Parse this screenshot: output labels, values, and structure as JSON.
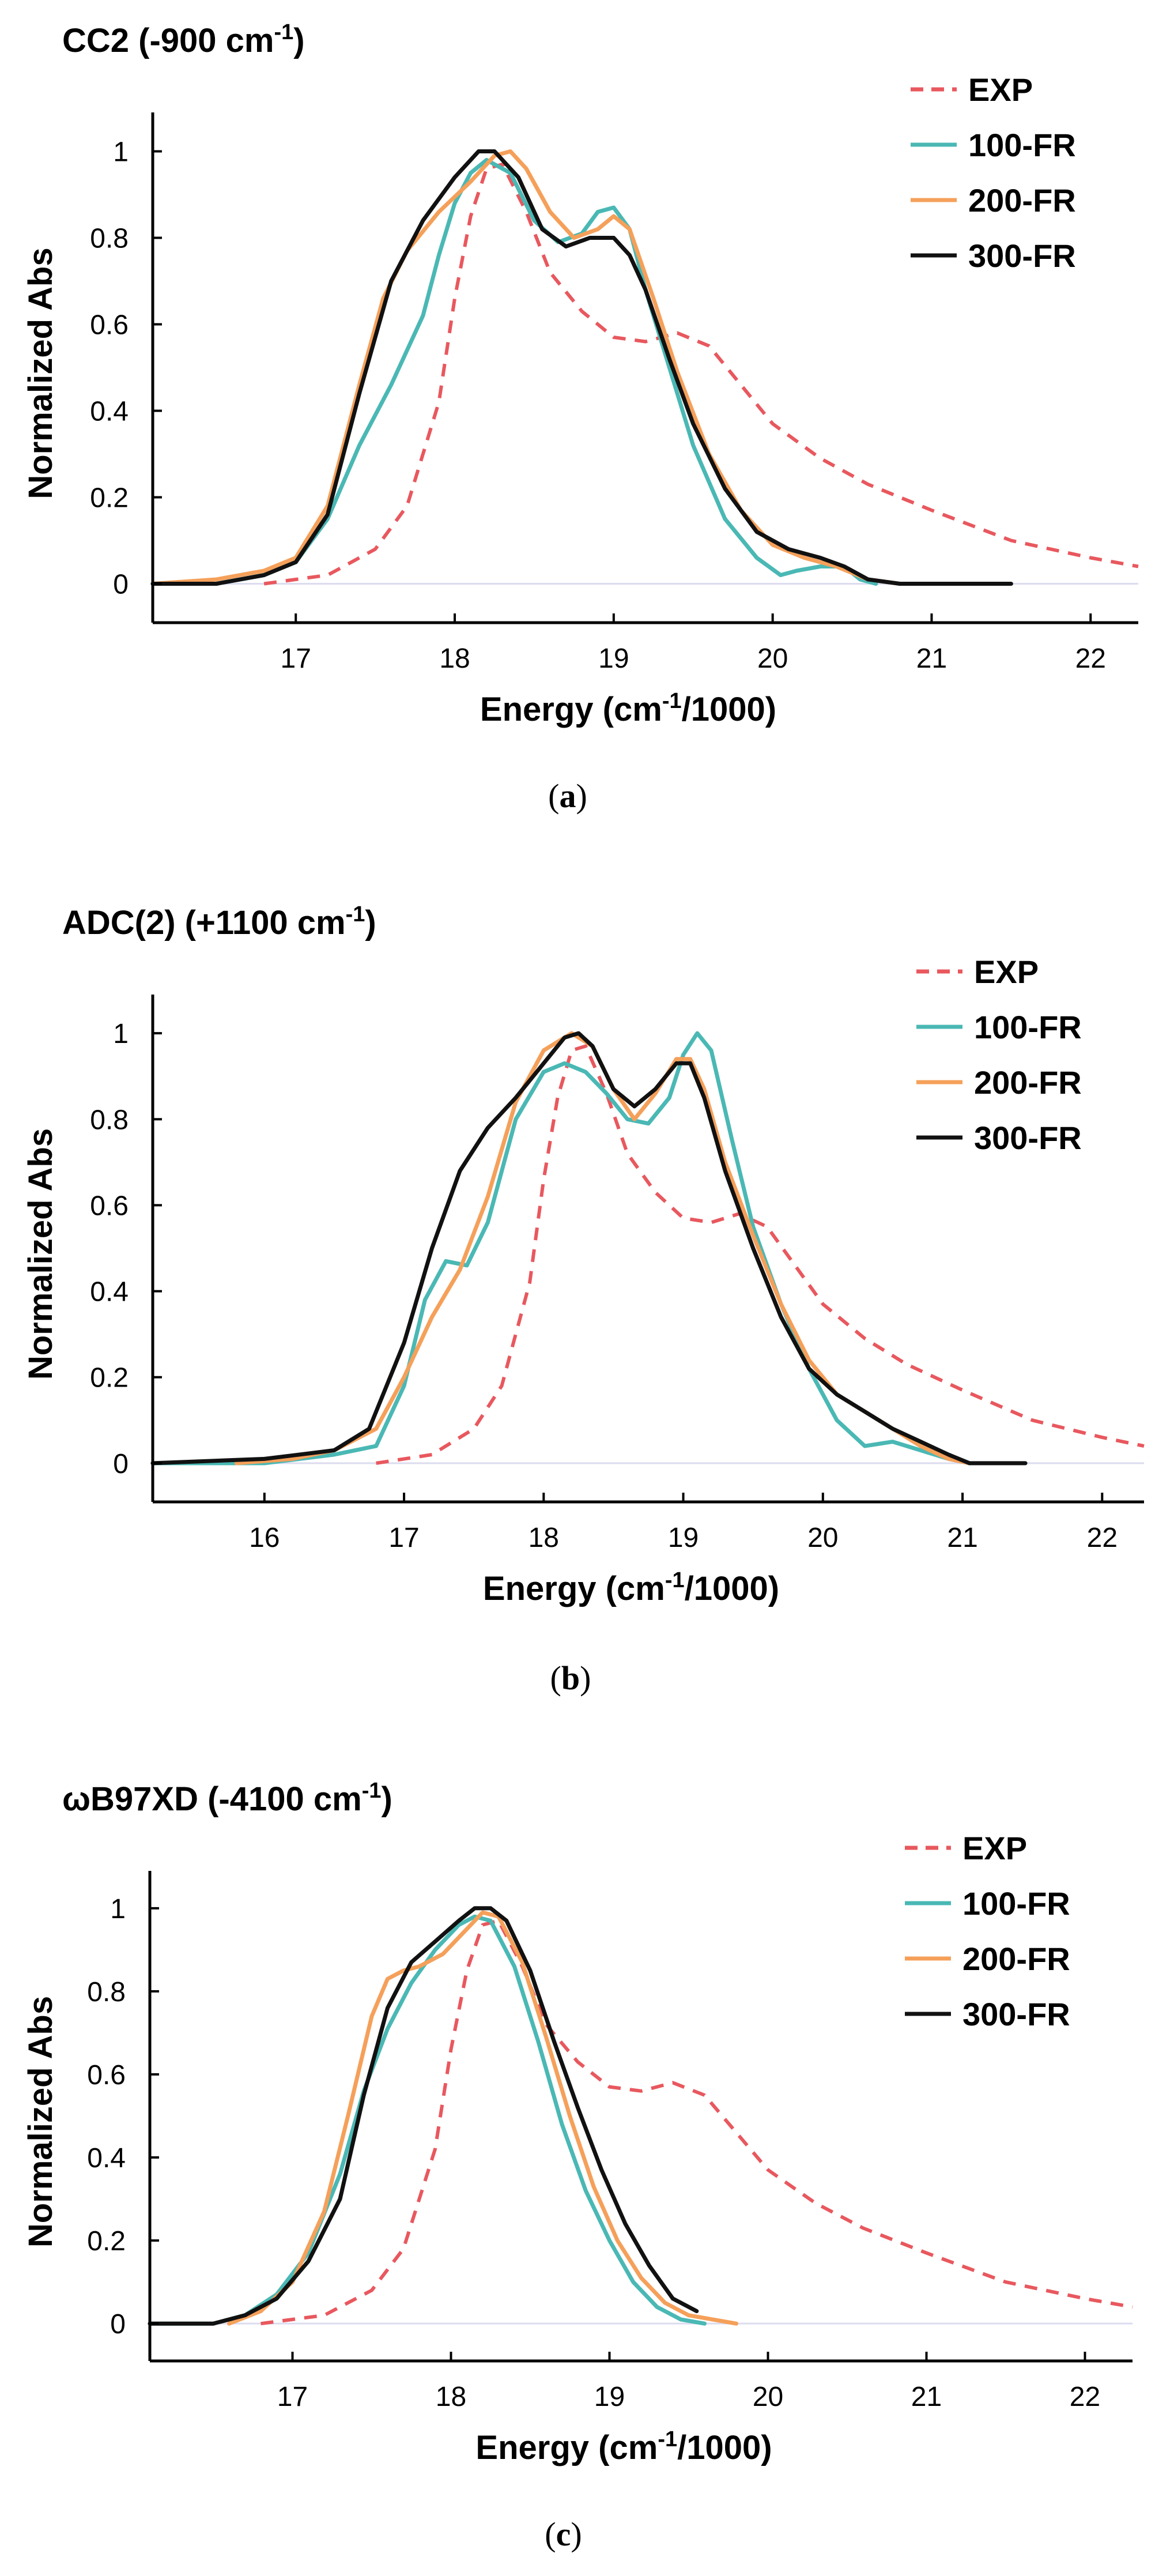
{
  "chart_data": [
    {
      "type": "line",
      "title": "CC2 (-900 cm",
      "title_sup": "-1",
      "title_tail": ")",
      "xlabel": "Energy (cm",
      "xlabel_sup": "-1",
      "xlabel_tail": "/1000)",
      "ylabel": "Normalized Abs",
      "xlim": [
        16.1,
        22.3
      ],
      "ylim": [
        -0.09,
        1.09
      ],
      "xticks": [
        "17",
        "18",
        "19",
        "20",
        "21",
        "22"
      ],
      "yticks": [
        "0",
        "0.2",
        "0.4",
        "0.6",
        "0.8",
        "1"
      ],
      "caption_open": "(",
      "caption": "a",
      "caption_close": ")",
      "legend_position": "top-right",
      "series": [
        {
          "name": "EXP",
          "color": "#e8585e",
          "dashed": true,
          "x": [
            16.8,
            17.2,
            17.5,
            17.7,
            17.9,
            18.0,
            18.1,
            18.2,
            18.3,
            18.45,
            18.6,
            18.8,
            19.0,
            19.2,
            19.4,
            19.6,
            19.8,
            20.0,
            20.3,
            20.6,
            21.0,
            21.5,
            22.0,
            22.3
          ],
          "y": [
            0.0,
            0.02,
            0.08,
            0.18,
            0.42,
            0.66,
            0.85,
            0.96,
            0.97,
            0.86,
            0.72,
            0.63,
            0.57,
            0.56,
            0.58,
            0.55,
            0.46,
            0.37,
            0.29,
            0.23,
            0.17,
            0.1,
            0.06,
            0.04
          ]
        },
        {
          "name": "100-FR",
          "color": "#4ab8b4",
          "dashed": false,
          "x": [
            16.1,
            16.5,
            16.8,
            17.0,
            17.2,
            17.4,
            17.6,
            17.8,
            17.9,
            18.0,
            18.1,
            18.2,
            18.35,
            18.5,
            18.65,
            18.8,
            18.9,
            19.0,
            19.1,
            19.2,
            19.35,
            19.5,
            19.7,
            19.9,
            20.05,
            20.15,
            20.3,
            20.45,
            20.55,
            20.65
          ],
          "y": [
            0.0,
            0.0,
            0.02,
            0.05,
            0.15,
            0.32,
            0.46,
            0.62,
            0.76,
            0.88,
            0.95,
            0.98,
            0.95,
            0.84,
            0.79,
            0.81,
            0.86,
            0.87,
            0.82,
            0.68,
            0.5,
            0.32,
            0.15,
            0.06,
            0.02,
            0.03,
            0.04,
            0.04,
            0.01,
            0.0
          ]
        },
        {
          "name": "200-FR",
          "color": "#f5a05a",
          "dashed": false,
          "x": [
            16.1,
            16.5,
            16.8,
            17.0,
            17.2,
            17.4,
            17.55,
            17.7,
            17.9,
            18.1,
            18.25,
            18.35,
            18.45,
            18.6,
            18.75,
            18.9,
            19.0,
            19.1,
            19.25,
            19.4,
            19.6,
            19.8,
            20.0,
            20.2,
            20.4,
            20.6,
            20.8,
            21.0
          ],
          "y": [
            0.0,
            0.01,
            0.03,
            0.06,
            0.18,
            0.46,
            0.66,
            0.77,
            0.86,
            0.93,
            0.99,
            1.0,
            0.96,
            0.86,
            0.8,
            0.82,
            0.85,
            0.82,
            0.66,
            0.49,
            0.3,
            0.17,
            0.09,
            0.06,
            0.04,
            0.01,
            0.0,
            0.0
          ]
        },
        {
          "name": "300-FR",
          "color": "#111111",
          "dashed": false,
          "x": [
            16.1,
            16.5,
            16.8,
            17.0,
            17.2,
            17.4,
            17.6,
            17.8,
            18.0,
            18.15,
            18.25,
            18.4,
            18.55,
            18.7,
            18.85,
            19.0,
            19.1,
            19.2,
            19.35,
            19.5,
            19.7,
            19.9,
            20.1,
            20.3,
            20.45,
            20.6,
            20.8,
            21.0,
            21.5
          ],
          "y": [
            0.0,
            0.0,
            0.02,
            0.05,
            0.16,
            0.44,
            0.7,
            0.84,
            0.94,
            1.0,
            1.0,
            0.94,
            0.82,
            0.78,
            0.8,
            0.8,
            0.76,
            0.68,
            0.52,
            0.37,
            0.22,
            0.12,
            0.08,
            0.06,
            0.04,
            0.01,
            0.0,
            0.0,
            0.0
          ]
        }
      ]
    },
    {
      "type": "line",
      "title": "ADC(2) (+1100 cm",
      "title_sup": "-1",
      "title_tail": ")",
      "xlabel": "Energy (cm",
      "xlabel_sup": "-1",
      "xlabel_tail": "/1000)",
      "ylabel": "Normalized Abs",
      "xlim": [
        15.2,
        22.3
      ],
      "ylim": [
        -0.09,
        1.09
      ],
      "xticks": [
        "16",
        "17",
        "18",
        "19",
        "20",
        "21",
        "22"
      ],
      "yticks": [
        "0",
        "0.2",
        "0.4",
        "0.6",
        "0.8",
        "1"
      ],
      "caption_open": "(",
      "caption": "b",
      "caption_close": ")",
      "legend_position": "top-right",
      "series": [
        {
          "name": "EXP",
          "color": "#e8585e",
          "dashed": true,
          "x": [
            16.8,
            17.2,
            17.5,
            17.7,
            17.9,
            18.0,
            18.1,
            18.2,
            18.3,
            18.45,
            18.6,
            18.8,
            19.0,
            19.2,
            19.4,
            19.6,
            19.8,
            20.0,
            20.3,
            20.6,
            21.0,
            21.5,
            22.0,
            22.3
          ],
          "y": [
            0.0,
            0.02,
            0.08,
            0.18,
            0.42,
            0.66,
            0.85,
            0.96,
            0.97,
            0.86,
            0.72,
            0.63,
            0.57,
            0.56,
            0.58,
            0.55,
            0.46,
            0.37,
            0.29,
            0.23,
            0.17,
            0.1,
            0.06,
            0.04
          ]
        },
        {
          "name": "100-FR",
          "color": "#4ab8b4",
          "dashed": false,
          "x": [
            15.2,
            16.0,
            16.5,
            16.8,
            17.0,
            17.15,
            17.3,
            17.45,
            17.6,
            17.8,
            18.0,
            18.15,
            18.3,
            18.45,
            18.6,
            18.75,
            18.9,
            19.0,
            19.1,
            19.2,
            19.35,
            19.5,
            19.7,
            19.9,
            20.1,
            20.3,
            20.5,
            20.7,
            20.9,
            21.05
          ],
          "y": [
            0.0,
            0.0,
            0.02,
            0.04,
            0.18,
            0.38,
            0.47,
            0.46,
            0.56,
            0.8,
            0.91,
            0.93,
            0.91,
            0.86,
            0.8,
            0.79,
            0.85,
            0.95,
            1.0,
            0.96,
            0.75,
            0.55,
            0.37,
            0.22,
            0.1,
            0.04,
            0.05,
            0.03,
            0.01,
            0.0
          ]
        },
        {
          "name": "200-FR",
          "color": "#f5a05a",
          "dashed": false,
          "x": [
            15.8,
            16.2,
            16.5,
            16.8,
            17.0,
            17.2,
            17.4,
            17.6,
            17.8,
            18.0,
            18.2,
            18.35,
            18.5,
            18.65,
            18.8,
            18.95,
            19.05,
            19.15,
            19.3,
            19.5,
            19.7,
            19.9,
            20.1,
            20.3,
            20.5,
            20.7,
            20.9,
            21.05
          ],
          "y": [
            0.0,
            0.01,
            0.03,
            0.08,
            0.2,
            0.34,
            0.45,
            0.62,
            0.84,
            0.96,
            1.0,
            0.97,
            0.87,
            0.8,
            0.86,
            0.94,
            0.94,
            0.87,
            0.7,
            0.53,
            0.37,
            0.24,
            0.16,
            0.12,
            0.08,
            0.04,
            0.01,
            0.0
          ]
        },
        {
          "name": "300-FR",
          "color": "#111111",
          "dashed": false,
          "x": [
            15.2,
            16.0,
            16.5,
            16.75,
            17.0,
            17.2,
            17.4,
            17.6,
            17.8,
            18.0,
            18.15,
            18.25,
            18.35,
            18.5,
            18.65,
            18.8,
            18.95,
            19.05,
            19.15,
            19.3,
            19.5,
            19.7,
            19.9,
            20.1,
            20.3,
            20.5,
            20.7,
            20.9,
            21.05,
            21.45
          ],
          "y": [
            0.0,
            0.01,
            0.03,
            0.08,
            0.28,
            0.5,
            0.68,
            0.78,
            0.85,
            0.93,
            0.99,
            1.0,
            0.97,
            0.87,
            0.83,
            0.87,
            0.93,
            0.93,
            0.85,
            0.68,
            0.5,
            0.34,
            0.22,
            0.16,
            0.12,
            0.08,
            0.05,
            0.02,
            0.0,
            0.0
          ]
        }
      ]
    },
    {
      "type": "line",
      "title": "ωB97XD (-4100 cm",
      "title_sup": "-1",
      "title_tail": ")",
      "xlabel": "Energy (cm",
      "xlabel_sup": "-1",
      "xlabel_tail": "/1000)",
      "ylabel": "Normalized Abs",
      "xlim": [
        16.1,
        22.3
      ],
      "ylim": [
        -0.09,
        1.09
      ],
      "xticks": [
        "17",
        "18",
        "19",
        "20",
        "21",
        "22"
      ],
      "yticks": [
        "0",
        "0.2",
        "0.4",
        "0.6",
        "0.8",
        "1"
      ],
      "caption_open": "(",
      "caption": "c",
      "caption_close": ")",
      "legend_position": "top-right",
      "series": [
        {
          "name": "EXP",
          "color": "#e8585e",
          "dashed": true,
          "x": [
            16.8,
            17.2,
            17.5,
            17.7,
            17.9,
            18.0,
            18.1,
            18.2,
            18.3,
            18.45,
            18.6,
            18.8,
            19.0,
            19.2,
            19.4,
            19.6,
            19.8,
            20.0,
            20.3,
            20.6,
            21.0,
            21.5,
            22.0,
            22.3
          ],
          "y": [
            0.0,
            0.02,
            0.08,
            0.18,
            0.42,
            0.66,
            0.85,
            0.96,
            0.97,
            0.86,
            0.72,
            0.63,
            0.57,
            0.56,
            0.58,
            0.55,
            0.46,
            0.37,
            0.29,
            0.23,
            0.17,
            0.1,
            0.06,
            0.04
          ]
        },
        {
          "name": "100-FR",
          "color": "#4ab8b4",
          "dashed": false,
          "x": [
            16.1,
            16.5,
            16.7,
            16.9,
            17.1,
            17.3,
            17.45,
            17.6,
            17.75,
            17.9,
            18.05,
            18.15,
            18.25,
            18.4,
            18.55,
            18.7,
            18.85,
            19.0,
            19.15,
            19.3,
            19.45,
            19.6
          ],
          "y": [
            0.0,
            0.0,
            0.02,
            0.07,
            0.17,
            0.36,
            0.56,
            0.71,
            0.82,
            0.9,
            0.96,
            0.98,
            0.97,
            0.86,
            0.68,
            0.48,
            0.32,
            0.2,
            0.1,
            0.04,
            0.01,
            0.0
          ]
        },
        {
          "name": "200-FR",
          "color": "#f5a05a",
          "dashed": false,
          "x": [
            16.6,
            16.8,
            17.0,
            17.2,
            17.35,
            17.5,
            17.6,
            17.7,
            17.8,
            17.95,
            18.1,
            18.2,
            18.3,
            18.45,
            18.6,
            18.75,
            18.9,
            19.05,
            19.2,
            19.35,
            19.5,
            19.65,
            19.8
          ],
          "y": [
            0.0,
            0.03,
            0.1,
            0.27,
            0.5,
            0.74,
            0.83,
            0.85,
            0.86,
            0.89,
            0.95,
            0.99,
            0.98,
            0.87,
            0.69,
            0.5,
            0.33,
            0.2,
            0.11,
            0.05,
            0.02,
            0.01,
            0.0
          ]
        },
        {
          "name": "300-FR",
          "color": "#111111",
          "dashed": false,
          "x": [
            16.1,
            16.5,
            16.7,
            16.9,
            17.1,
            17.3,
            17.45,
            17.6,
            17.75,
            17.9,
            18.05,
            18.15,
            18.25,
            18.35,
            18.5,
            18.65,
            18.8,
            18.95,
            19.1,
            19.25,
            19.4,
            19.55
          ],
          "y": [
            0.0,
            0.0,
            0.02,
            0.06,
            0.15,
            0.3,
            0.55,
            0.76,
            0.87,
            0.92,
            0.97,
            1.0,
            1.0,
            0.97,
            0.85,
            0.68,
            0.52,
            0.37,
            0.24,
            0.14,
            0.06,
            0.03
          ]
        }
      ]
    }
  ]
}
